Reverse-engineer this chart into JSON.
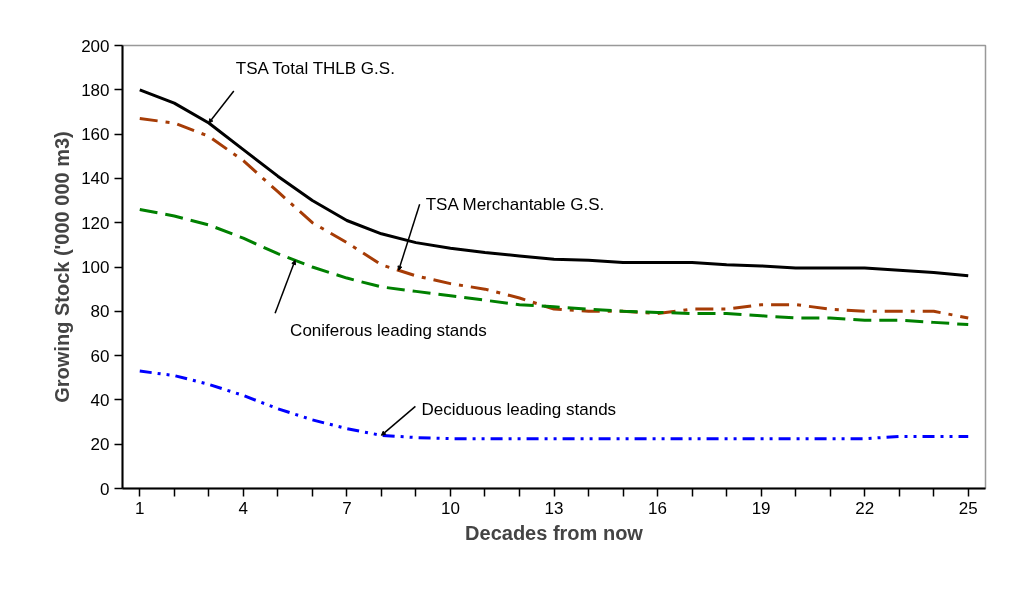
{
  "chart_data": {
    "type": "line",
    "xlabel": "Decades from now",
    "ylabel": "Growing Stock ('000 000 m3)",
    "x": [
      1,
      2,
      3,
      4,
      5,
      6,
      7,
      8,
      9,
      10,
      11,
      12,
      13,
      14,
      15,
      16,
      17,
      18,
      19,
      20,
      21,
      22,
      23,
      24,
      25
    ],
    "series": [
      {
        "color": "#000000",
        "line_style": "solid",
        "values": [
          180,
          174,
          165,
          153,
          141,
          130,
          121,
          115,
          111,
          108.5,
          106.5,
          105,
          103.5,
          103,
          102,
          102,
          102,
          101,
          100.5,
          99.5,
          99.5,
          99.5,
          98.5,
          97.5,
          96
        ]
      },
      {
        "color": "#a63c06",
        "line_style": "dashdot",
        "values": [
          167,
          165,
          159,
          148,
          134,
          120,
          111,
          101,
          96,
          92.5,
          90,
          86,
          81,
          80,
          80,
          79,
          81,
          81,
          83,
          83,
          81,
          80,
          80,
          80,
          77
        ]
      },
      {
        "color": "#008000",
        "line_style": "dashed",
        "values": [
          126,
          123,
          119,
          113,
          106,
          100,
          95,
          91,
          89,
          87,
          85,
          83,
          82,
          81,
          80,
          79.5,
          79,
          79,
          78,
          77,
          77,
          76,
          76,
          75,
          74
        ]
      },
      {
        "color": "#0000ff",
        "line_style": "dashdotdot",
        "values": [
          53,
          51,
          47,
          42,
          36,
          31,
          27,
          24,
          23,
          22.5,
          22.5,
          22.5,
          22.5,
          22.5,
          22.5,
          22.5,
          22.5,
          22.5,
          22.5,
          22.5,
          22.5,
          22.5,
          23.5,
          23.5,
          23.5
        ]
      }
    ],
    "xlim": [
      0.5,
      25.5
    ],
    "xticks": [
      1,
      {
        "value": 2,
        "label": null
      },
      {
        "value": 3,
        "label": null
      },
      4,
      {
        "value": 5,
        "label": null
      },
      {
        "value": 6,
        "label": null
      },
      7,
      {
        "value": 8,
        "label": null
      },
      {
        "value": 9,
        "label": null
      },
      10,
      {
        "value": 11,
        "label": null
      },
      {
        "value": 12,
        "label": null
      },
      13,
      {
        "value": 14,
        "label": null
      },
      {
        "value": 15,
        "label": null
      },
      16,
      {
        "value": 17,
        "label": null
      },
      {
        "value": 18,
        "label": null
      },
      19,
      {
        "value": 20,
        "label": null
      },
      {
        "value": 21,
        "label": null
      },
      22,
      {
        "value": 23,
        "label": null
      },
      {
        "value": 24,
        "label": null
      },
      25
    ],
    "ylim": [
      0,
      200
    ],
    "yticks": [
      0,
      20,
      40,
      60,
      80,
      100,
      120,
      140,
      160,
      180,
      200
    ],
    "annotations": [
      {
        "text": "TSA Total THLB G.S.",
        "x": 3,
        "y": 165
      },
      {
        "text": "TSA Merchantable G.S.",
        "x": 8.5,
        "y": 98.5
      },
      {
        "text": "Coniferous leading stands",
        "x": 5.5,
        "y": 103
      },
      {
        "text": "Deciduous leading stands",
        "x": 8,
        "y": 24
      }
    ],
    "grid": false,
    "marker": "none"
  }
}
